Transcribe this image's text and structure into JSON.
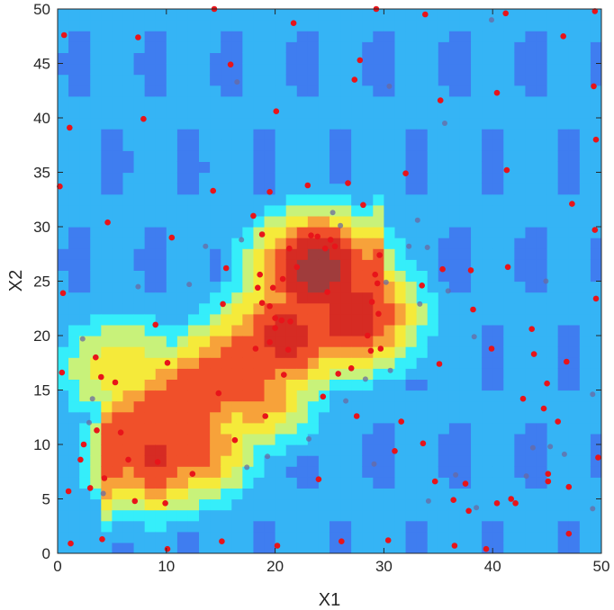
{
  "chart_data": {
    "type": "scatter",
    "title": "",
    "xlabel": "X1",
    "ylabel": "X2",
    "xlim": [
      0,
      50
    ],
    "ylim": [
      0,
      50
    ],
    "xticks": [
      "0",
      "10",
      "20",
      "30",
      "40",
      "50"
    ],
    "yticks": [
      "0",
      "5",
      "10",
      "15",
      "20",
      "25",
      "30",
      "35",
      "40",
      "45",
      "50"
    ],
    "background": "interpolated heat surface (jet colormap)",
    "colormap": [
      "#2a3dd8",
      "#3f7df0",
      "#35b4f5",
      "#35eefa",
      "#c8f27a",
      "#f5ea3a",
      "#f7a23a",
      "#f0502a",
      "#d62b23",
      "#a03c3c"
    ],
    "surface_peaks": [
      {
        "x": 9,
        "y": 9,
        "level": 0.82
      },
      {
        "x": 12,
        "y": 10,
        "level": 0.78
      },
      {
        "x": 21,
        "y": 20,
        "level": 0.86
      },
      {
        "x": 24,
        "y": 26,
        "level": 0.98
      },
      {
        "x": 27,
        "y": 22,
        "level": 0.88
      },
      {
        "x": 18,
        "y": 15,
        "level": 0.72
      },
      {
        "x": 6,
        "y": 17,
        "level": 0.58
      }
    ],
    "grid": false,
    "legend": "none",
    "marker_color": "#e8141a",
    "points": [
      [
        0.2,
        33.7
      ],
      [
        0.4,
        16.6
      ],
      [
        0.5,
        23.9
      ],
      [
        0.6,
        47.6
      ],
      [
        1.0,
        5.7
      ],
      [
        1.1,
        39.1
      ],
      [
        1.2,
        0.9
      ],
      [
        2.1,
        8.6
      ],
      [
        2.4,
        10.0
      ],
      [
        3.0,
        6.0
      ],
      [
        3.5,
        18.0
      ],
      [
        3.6,
        11.3
      ],
      [
        4.0,
        16.2
      ],
      [
        4.1,
        1.3
      ],
      [
        4.3,
        6.9
      ],
      [
        4.6,
        30.4
      ],
      [
        5.3,
        15.7
      ],
      [
        5.8,
        11.1
      ],
      [
        6.5,
        8.6
      ],
      [
        7.1,
        4.8
      ],
      [
        7.4,
        47.4
      ],
      [
        7.9,
        39.9
      ],
      [
        9.0,
        21.0
      ],
      [
        9.2,
        8.4
      ],
      [
        9.9,
        4.6
      ],
      [
        10.1,
        0.4
      ],
      [
        10.1,
        17.5
      ],
      [
        10.5,
        29.0
      ],
      [
        12.4,
        7.3
      ],
      [
        14.3,
        33.3
      ],
      [
        14.4,
        50.0
      ],
      [
        14.8,
        14.7
      ],
      [
        15.1,
        1.1
      ],
      [
        15.2,
        22.9
      ],
      [
        15.5,
        26.2
      ],
      [
        15.9,
        44.9
      ],
      [
        16.3,
        10.4
      ],
      [
        18.0,
        31.0
      ],
      [
        18.2,
        18.8
      ],
      [
        18.4,
        24.4
      ],
      [
        18.6,
        25.6
      ],
      [
        18.8,
        29.3
      ],
      [
        18.8,
        23.0
      ],
      [
        19.1,
        12.6
      ],
      [
        19.5,
        33.2
      ],
      [
        19.5,
        19.4
      ],
      [
        19.5,
        22.7
      ],
      [
        19.8,
        24.4
      ],
      [
        20.0,
        21.6
      ],
      [
        20.0,
        20.7
      ],
      [
        20.1,
        40.6
      ],
      [
        20.2,
        0.7
      ],
      [
        20.6,
        21.4
      ],
      [
        20.7,
        25.2
      ],
      [
        20.8,
        16.4
      ],
      [
        21.2,
        18.7
      ],
      [
        21.3,
        28.0
      ],
      [
        21.4,
        21.3
      ],
      [
        21.7,
        48.7
      ],
      [
        22.0,
        26.3
      ],
      [
        23.0,
        33.8
      ],
      [
        23.3,
        29.2
      ],
      [
        23.9,
        29.1
      ],
      [
        24.0,
        6.8
      ],
      [
        24.4,
        14.4
      ],
      [
        24.6,
        28.0
      ],
      [
        24.8,
        24.0
      ],
      [
        25.1,
        28.8
      ],
      [
        25.5,
        28.2
      ],
      [
        25.8,
        16.5
      ],
      [
        26.1,
        1.1
      ],
      [
        26.7,
        34.0
      ],
      [
        27.0,
        17.0
      ],
      [
        27.3,
        43.5
      ],
      [
        27.5,
        12.6
      ],
      [
        27.8,
        45.3
      ],
      [
        28.1,
        32.0
      ],
      [
        28.5,
        20.0
      ],
      [
        28.8,
        18.6
      ],
      [
        28.9,
        23.1
      ],
      [
        29.2,
        25.6
      ],
      [
        29.3,
        50.0
      ],
      [
        29.4,
        24.8
      ],
      [
        29.5,
        22.0
      ],
      [
        29.6,
        27.4
      ],
      [
        29.7,
        18.8
      ],
      [
        30.4,
        1.2
      ],
      [
        31.0,
        9.4
      ],
      [
        31.6,
        12.1
      ],
      [
        32.0,
        34.9
      ],
      [
        33.5,
        24.6
      ],
      [
        33.6,
        10.1
      ],
      [
        33.8,
        49.5
      ],
      [
        34.7,
        6.6
      ],
      [
        35.1,
        17.4
      ],
      [
        35.2,
        41.6
      ],
      [
        35.4,
        26.1
      ],
      [
        36.4,
        4.9
      ],
      [
        36.5,
        0.7
      ],
      [
        37.5,
        6.4
      ],
      [
        37.8,
        3.9
      ],
      [
        38.0,
        26.0
      ],
      [
        38.2,
        22.4
      ],
      [
        39.4,
        0.4
      ],
      [
        39.9,
        18.8
      ],
      [
        40.4,
        42.3
      ],
      [
        40.4,
        4.6
      ],
      [
        41.2,
        49.6
      ],
      [
        41.3,
        35.2
      ],
      [
        41.4,
        26.3
      ],
      [
        41.7,
        5.0
      ],
      [
        42.1,
        4.6
      ],
      [
        42.8,
        14.2
      ],
      [
        43.6,
        20.6
      ],
      [
        43.8,
        18.3
      ],
      [
        44.7,
        13.3
      ],
      [
        45.0,
        15.6
      ],
      [
        45.1,
        7.3
      ],
      [
        45.1,
        6.6
      ],
      [
        46.0,
        12.1
      ],
      [
        46.5,
        47.5
      ],
      [
        46.8,
        17.6
      ],
      [
        47.0,
        6.1
      ],
      [
        47.0,
        1.8
      ],
      [
        47.3,
        32.1
      ],
      [
        49.3,
        42.9
      ],
      [
        49.4,
        49.8
      ],
      [
        49.4,
        29.7
      ],
      [
        49.5,
        23.4
      ],
      [
        49.5,
        38.0
      ],
      [
        49.7,
        8.8
      ]
    ],
    "faded_points": [
      [
        2.3,
        19.7
      ],
      [
        2.9,
        12.0
      ],
      [
        3.2,
        14.2
      ],
      [
        4.2,
        5.5
      ],
      [
        7.4,
        24.5
      ],
      [
        12.1,
        24.7
      ],
      [
        13.6,
        28.2
      ],
      [
        16.5,
        43.3
      ],
      [
        16.9,
        28.8
      ],
      [
        17.4,
        7.9
      ],
      [
        19.3,
        8.9
      ],
      [
        23.1,
        10.5
      ],
      [
        25.3,
        31.3
      ],
      [
        26.0,
        30.1
      ],
      [
        26.5,
        14.0
      ],
      [
        28.3,
        16.0
      ],
      [
        29.1,
        8.2
      ],
      [
        30.2,
        24.9
      ],
      [
        30.5,
        42.9
      ],
      [
        30.6,
        16.8
      ],
      [
        32.3,
        28.2
      ],
      [
        33.1,
        30.6
      ],
      [
        33.3,
        22.9
      ],
      [
        34.0,
        28.1
      ],
      [
        34.1,
        4.8
      ],
      [
        35.6,
        39.5
      ],
      [
        35.9,
        24.1
      ],
      [
        36.6,
        7.2
      ],
      [
        38.3,
        19.9
      ],
      [
        38.5,
        4.2
      ],
      [
        39.9,
        49.0
      ],
      [
        43.1,
        7.1
      ],
      [
        43.7,
        9.7
      ],
      [
        44.9,
        25.0
      ],
      [
        45.3,
        9.8
      ],
      [
        46.6,
        9.1
      ],
      [
        49.2,
        4.1
      ],
      [
        49.2,
        14.6
      ]
    ]
  }
}
